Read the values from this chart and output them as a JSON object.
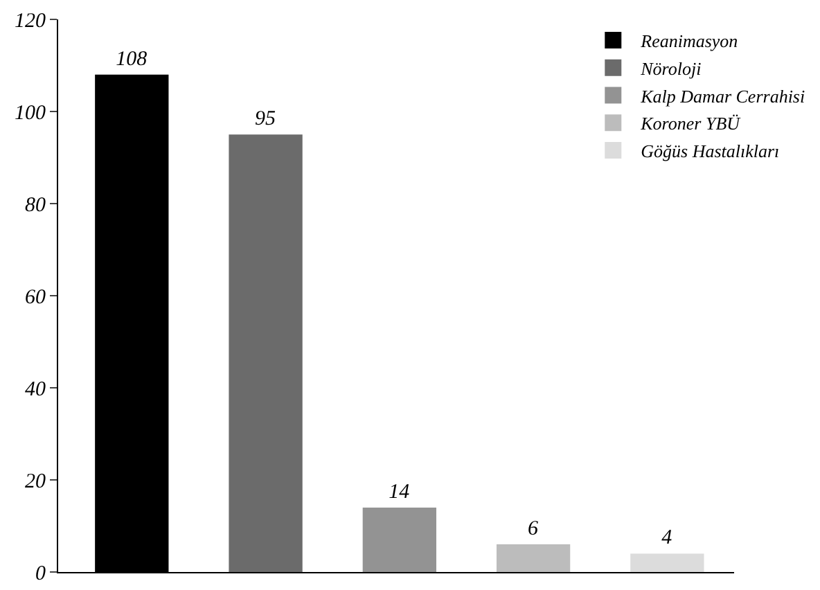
{
  "chart_data": {
    "type": "bar",
    "categories": [
      null,
      null,
      null,
      null,
      null
    ],
    "series": [
      {
        "name": "Reanimasyon",
        "color": "#000000",
        "values": [
          108,
          null,
          null,
          null,
          null
        ]
      },
      {
        "name": "Nöroloji",
        "color": "#6b6b6b",
        "values": [
          null,
          95,
          null,
          null,
          null
        ]
      },
      {
        "name": "Kalp Damar Cerrahisi",
        "color": "#939393",
        "values": [
          null,
          null,
          14,
          null,
          null
        ]
      },
      {
        "name": "Koroner YBÜ",
        "color": "#bcbcbc",
        "values": [
          null,
          null,
          null,
          6,
          null
        ]
      },
      {
        "name": "Göğüs Hastalıkları",
        "color": "#dcdcdc",
        "values": [
          null,
          null,
          null,
          null,
          4
        ]
      }
    ],
    "ylim": [
      0,
      120
    ],
    "yticks": [
      0,
      20,
      40,
      60,
      80,
      100,
      120
    ],
    "data_labels": true,
    "legend": "top right"
  }
}
